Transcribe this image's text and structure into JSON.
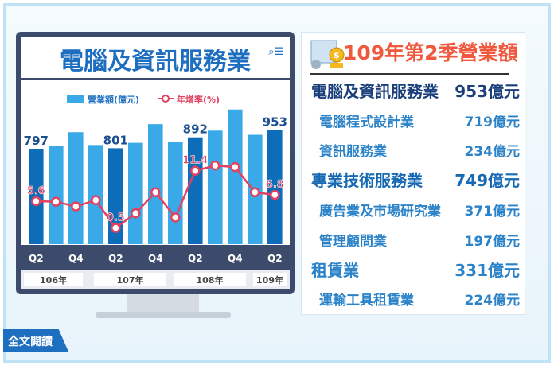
{
  "monitor": {
    "title": "電腦及資訊服務業",
    "icons": [
      "search-icon",
      "menu-icon"
    ]
  },
  "chart_data": {
    "type": "bar",
    "categories": [
      "106Q2",
      "106Q3",
      "106Q4",
      "107Q1",
      "107Q2",
      "107Q3",
      "107Q4",
      "108Q1",
      "108Q2",
      "108Q3",
      "108Q4",
      "109Q1",
      "109Q2"
    ],
    "tick_labels": [
      "Q2",
      "",
      "Q4",
      "",
      "Q2",
      "",
      "Q4",
      "",
      "Q2",
      "",
      "Q4",
      "",
      "Q2"
    ],
    "year_labels": [
      "106年",
      "107年",
      "108年",
      "109年"
    ],
    "series": [
      {
        "name": "營業額",
        "unit": "(億元)",
        "type": "bar",
        "values": [
          797,
          819,
          935,
          828,
          801,
          846,
          1002,
          850,
          892,
          948,
          1124,
          913,
          953
        ],
        "colors": {
          "highlight": "#0d6db8",
          "normal": "#3aa9e8"
        }
      },
      {
        "name": "年增率",
        "unit": "(%)",
        "type": "line",
        "values": [
          5.6,
          5.5,
          4.6,
          5.8,
          0.5,
          3.3,
          7.3,
          2.5,
          11.4,
          12.4,
          12.1,
          7.3,
          6.8
        ],
        "color": "#e2415f"
      }
    ],
    "bar_labels": {
      "0": "797",
      "4": "801",
      "8": "892",
      "12": "953"
    },
    "line_labels": {
      "0": "5.6",
      "4": "0.5",
      "8": "11.4",
      "12": "6.8"
    },
    "ylim": [
      0,
      1200
    ],
    "legend_position": "top"
  },
  "panel": {
    "title": "109年第2季營業額",
    "rows": [
      {
        "label": "電腦及資訊服務業",
        "value": "953億元",
        "level": "main"
      },
      {
        "label": "電腦程式設計業",
        "value": "719億元",
        "level": "sub"
      },
      {
        "label": "資訊服務業",
        "value": "234億元",
        "level": "sub"
      },
      {
        "label": "專業技術服務業",
        "value": "749億元",
        "level": "main"
      },
      {
        "label": "廣告業及市場研究業",
        "value": "371億元",
        "level": "sub"
      },
      {
        "label": "管理顧問業",
        "value": "197億元",
        "level": "sub"
      },
      {
        "label": "租賃業",
        "value": "331億元",
        "level": "main"
      },
      {
        "label": "運輸工具租賃業",
        "value": "224億元",
        "level": "sub"
      }
    ]
  },
  "read_button": "全文閱讀"
}
